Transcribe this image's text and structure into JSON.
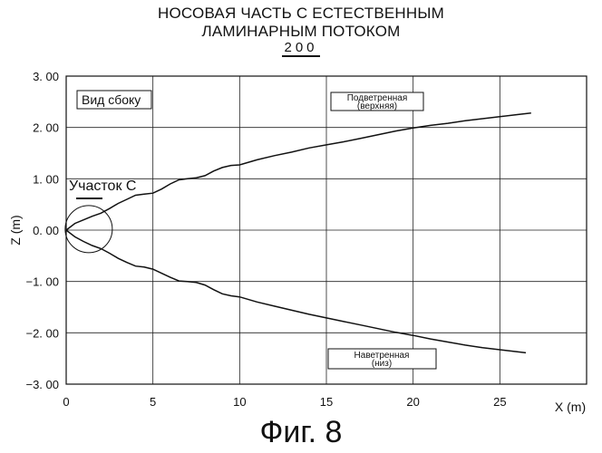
{
  "figure": {
    "title_line1": "НОСОВАЯ ЧАСТЬ С ЕСТЕСТВЕННЫМ",
    "title_line2": "ЛАМИНАРНЫМ ПОТОКОМ",
    "reference_number": "200",
    "caption": "Фиг. 8"
  },
  "chart_data": {
    "type": "line",
    "xlabel": "X (m)",
    "ylabel": "Z (m)",
    "xlim": [
      0,
      30
    ],
    "ylim": [
      -3,
      3
    ],
    "xticks": [
      0,
      5,
      10,
      15,
      20,
      25
    ],
    "xtick_labels": [
      "0",
      "5",
      "10",
      "15",
      "20",
      "25"
    ],
    "yticks": [
      3,
      2,
      1,
      0,
      -1,
      -2,
      -3
    ],
    "ytick_labels": [
      "3. 00",
      "2. 00",
      "1. 00",
      "0. 00",
      "−1. 00",
      "−2. 00",
      "−3. 00"
    ],
    "grid": true,
    "series": [
      {
        "name": "Подветренная (верхняя)",
        "x": [
          0,
          0.5,
          1,
          1.5,
          2,
          2.5,
          3,
          3.5,
          4,
          4.5,
          5,
          5.5,
          6,
          6.5,
          7,
          7.5,
          8,
          8.5,
          9,
          9.5,
          10,
          11,
          12,
          13,
          14,
          15,
          16,
          17,
          18,
          19,
          20,
          21,
          22,
          23,
          24,
          25,
          26,
          26.8
        ],
        "y": [
          0,
          0.13,
          0.2,
          0.27,
          0.33,
          0.42,
          0.52,
          0.6,
          0.68,
          0.7,
          0.72,
          0.8,
          0.9,
          0.98,
          1.0,
          1.02,
          1.06,
          1.15,
          1.22,
          1.26,
          1.27,
          1.37,
          1.45,
          1.52,
          1.6,
          1.66,
          1.72,
          1.79,
          1.86,
          1.93,
          1.99,
          2.04,
          2.08,
          2.13,
          2.17,
          2.21,
          2.25,
          2.28
        ],
        "legend": "top-center"
      },
      {
        "name": "Наветренная (низ)",
        "x": [
          0,
          0.5,
          1,
          1.5,
          2,
          2.5,
          3,
          3.5,
          4,
          4.5,
          5,
          5.5,
          6,
          6.5,
          7,
          7.5,
          8,
          8.5,
          9,
          9.5,
          10,
          11,
          12,
          13,
          14,
          15,
          16,
          17,
          18,
          19,
          20,
          21,
          22,
          23,
          24,
          25,
          26,
          26.5
        ],
        "y": [
          0,
          -0.13,
          -0.22,
          -0.3,
          -0.36,
          -0.45,
          -0.55,
          -0.63,
          -0.7,
          -0.72,
          -0.76,
          -0.84,
          -0.92,
          -0.99,
          -1.0,
          -1.02,
          -1.07,
          -1.16,
          -1.24,
          -1.28,
          -1.3,
          -1.4,
          -1.48,
          -1.56,
          -1.64,
          -1.71,
          -1.78,
          -1.85,
          -1.92,
          -1.99,
          -2.05,
          -2.12,
          -2.18,
          -2.24,
          -2.29,
          -2.33,
          -2.37,
          -2.39
        ],
        "legend": "bottom-center"
      }
    ],
    "legend_boxes": [
      {
        "line1": "Подветренная",
        "line2": "(верхняя)"
      },
      {
        "line1": "Наветренная",
        "line2": "(низ)"
      }
    ],
    "annotations": {
      "view_label": "Вид сбоку",
      "region_label": "Участок С"
    }
  }
}
